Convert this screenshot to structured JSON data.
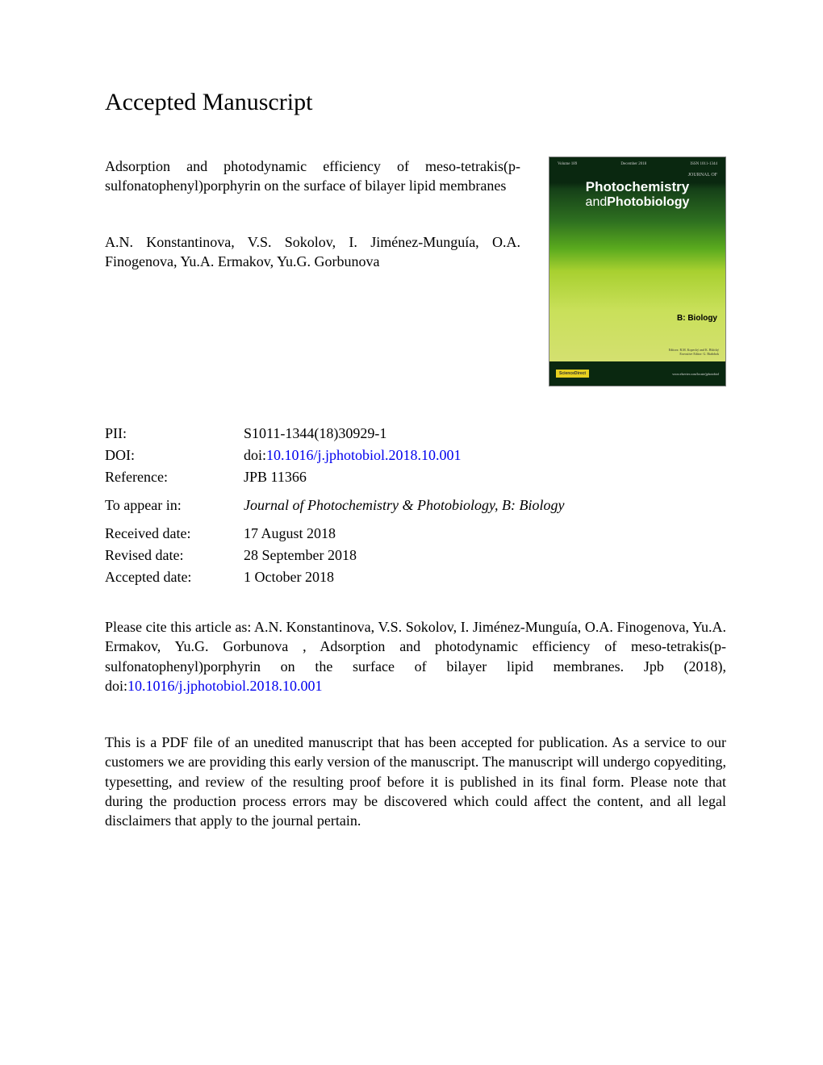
{
  "heading": "Accepted Manuscript",
  "article_title": "Adsorption and photodynamic efficiency of meso-tetrakis(p-sulfonatophenyl)porphyrin on the surface of bilayer lipid membranes",
  "authors": "A.N. Konstantinova, V.S. Sokolov, I. Jiménez-Munguía, O.A. Finogenova, Yu.A. Ermakov, Yu.G. Gorbunova",
  "cover": {
    "journal_of": "JOURNAL OF",
    "name1": "Photochemistry",
    "name2_a": "and",
    "name2_b": "Photobiology",
    "biology": "B: Biology",
    "editors_line1": "Editors: R.M. Kopecký and K. Bštícký",
    "editors_line2": "Executive Editor: G. Białobok",
    "sciencedirect": "ScienceDirect",
    "url": "www.elsevier.com/locate/jphotobiol"
  },
  "meta": {
    "pii_label": "PII:",
    "pii_value": "S1011-1344(18)30929-1",
    "doi_label": "DOI:",
    "doi_prefix": "doi:",
    "doi_link": "10.1016/j.jphotobiol.2018.10.001",
    "reference_label": "Reference:",
    "reference_value": "JPB 11366",
    "appear_label": "To appear in:",
    "appear_value": "Journal of Photochemistry & Photobiology, B: Biology",
    "received_label": "Received date:",
    "received_value": "17 August 2018",
    "revised_label": "Revised date:",
    "revised_value": "28 September 2018",
    "accepted_label": "Accepted date:",
    "accepted_value": "1 October 2018"
  },
  "citation": {
    "prefix": "Please cite this article as: A.N. Konstantinova, V.S. Sokolov, I. Jiménez-Munguía, O.A. Finogenova, Yu.A. Ermakov, Yu.G. Gorbunova , Adsorption and photodynamic efficiency of meso-tetrakis(p-sulfonatophenyl)porphyrin on the surface of bilayer lipid membranes. Jpb (2018), doi:",
    "link": "10.1016/j.jphotobiol.2018.10.001"
  },
  "disclaimer": "This is a PDF file of an unedited manuscript that has been accepted for publication. As a service to our customers we are providing this early version of the manuscript. The manuscript will undergo copyediting, typesetting, and review of the resulting proof before it is published in its final form. Please note that during the production process errors may be discovered which could affect the content, and all legal disclaimers that apply to the journal pertain."
}
